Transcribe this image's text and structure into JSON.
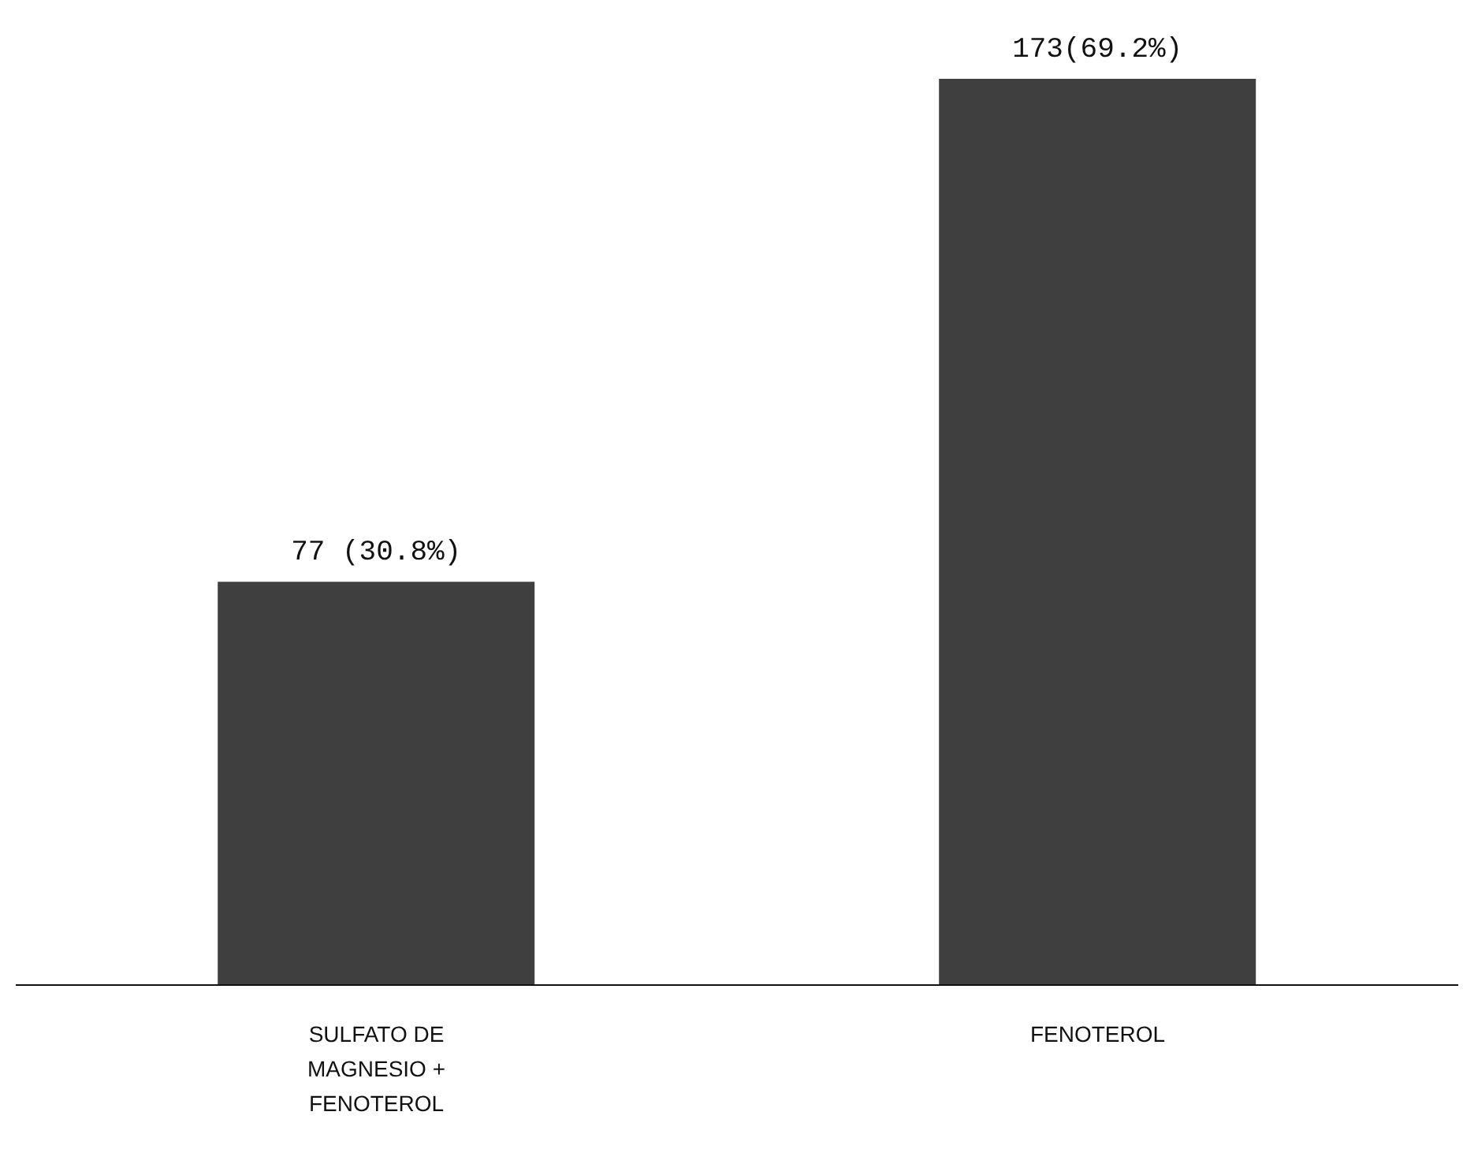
{
  "chart_data": {
    "type": "bar",
    "categories": [
      "SULFATO DE MAGNESIO + FENOTEROL",
      "FENOTEROL"
    ],
    "values": [
      77,
      173
    ],
    "color": "#3f3f3f",
    "value_labels": [
      "77 (30.8%)",
      "173(69.2%)"
    ],
    "grid": false,
    "legend": false
  }
}
